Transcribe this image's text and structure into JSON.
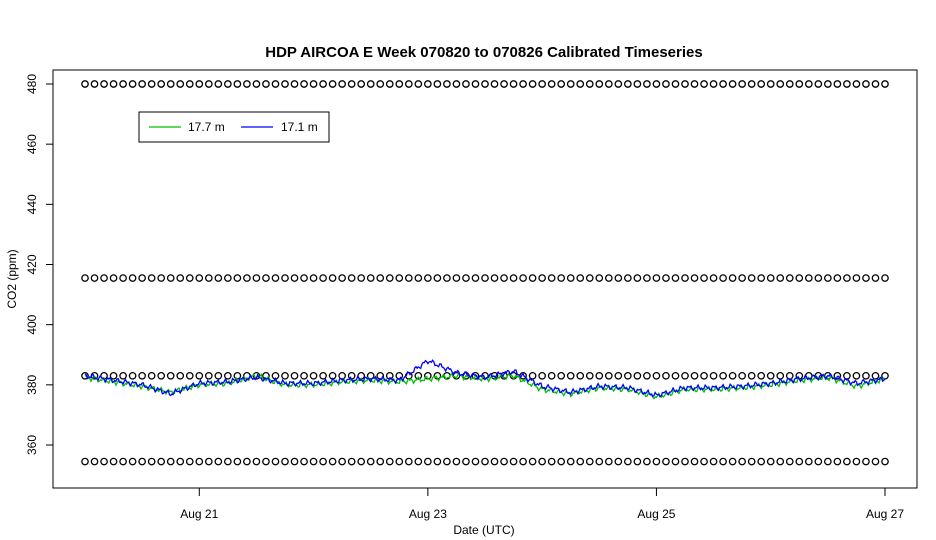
{
  "chart_data": {
    "type": "line",
    "title": "HDP AIRCOA E  Week 070820 to 070826  Calibrated Timeseries",
    "xlabel": "Date (UTC)",
    "ylabel": "CO2 (ppm)",
    "xlim": [
      "2007-08-20",
      "2007-08-27"
    ],
    "ylim": [
      345,
      484
    ],
    "x_ticks": [
      {
        "date": "2007-08-21",
        "label": "Aug 21"
      },
      {
        "date": "2007-08-23",
        "label": "Aug 23"
      },
      {
        "date": "2007-08-25",
        "label": "Aug 25"
      },
      {
        "date": "2007-08-27",
        "label": "Aug 27"
      }
    ],
    "y_ticks": [
      360,
      380,
      400,
      420,
      440,
      460,
      480
    ],
    "grid": false,
    "legend": {
      "position": "top-left",
      "entries": [
        {
          "name": "17.7 m",
          "color": "#00c000"
        },
        {
          "name": "17.1 m",
          "color": "#0000ff"
        }
      ]
    },
    "series": [
      {
        "name": "17.7 m",
        "color": "#00c000",
        "x": [
          "2007-08-20 00:00",
          "2007-08-20 06:00",
          "2007-08-20 12:00",
          "2007-08-20 18:00",
          "2007-08-21 00:00",
          "2007-08-21 06:00",
          "2007-08-21 12:00",
          "2007-08-21 18:00",
          "2007-08-22 00:00",
          "2007-08-22 06:00",
          "2007-08-22 12:00",
          "2007-08-22 18:00",
          "2007-08-23 00:00",
          "2007-08-23 06:00",
          "2007-08-23 12:00",
          "2007-08-23 18:00",
          "2007-08-24 00:00",
          "2007-08-24 06:00",
          "2007-08-24 12:00",
          "2007-08-24 18:00",
          "2007-08-25 00:00",
          "2007-08-25 06:00",
          "2007-08-25 12:00",
          "2007-08-25 18:00",
          "2007-08-26 00:00",
          "2007-08-26 06:00",
          "2007-08-26 12:00",
          "2007-08-26 18:00",
          "2007-08-27 00:00"
        ],
        "values": [
          382.5,
          381.0,
          379.5,
          377.5,
          380.0,
          380.5,
          383.0,
          380.0,
          380.0,
          381.0,
          381.5,
          381.0,
          382.0,
          383.0,
          382.0,
          383.0,
          378.5,
          377.0,
          379.0,
          378.5,
          376.0,
          378.5,
          378.5,
          379.0,
          380.0,
          381.5,
          382.5,
          379.5,
          382.0
        ]
      },
      {
        "name": "17.1 m",
        "color": "#0000ff",
        "x": [
          "2007-08-20 00:00",
          "2007-08-20 06:00",
          "2007-08-20 12:00",
          "2007-08-20 18:00",
          "2007-08-21 00:00",
          "2007-08-21 06:00",
          "2007-08-21 12:00",
          "2007-08-21 18:00",
          "2007-08-22 00:00",
          "2007-08-22 06:00",
          "2007-08-22 12:00",
          "2007-08-22 18:00",
          "2007-08-23 00:00",
          "2007-08-23 06:00",
          "2007-08-23 12:00",
          "2007-08-23 18:00",
          "2007-08-24 00:00",
          "2007-08-24 06:00",
          "2007-08-24 12:00",
          "2007-08-24 18:00",
          "2007-08-25 00:00",
          "2007-08-25 06:00",
          "2007-08-25 12:00",
          "2007-08-25 18:00",
          "2007-08-26 00:00",
          "2007-08-26 06:00",
          "2007-08-26 12:00",
          "2007-08-26 18:00",
          "2007-08-27 00:00"
        ],
        "values": [
          383.0,
          381.5,
          380.0,
          377.0,
          380.5,
          381.0,
          382.5,
          380.5,
          380.5,
          381.5,
          382.0,
          381.5,
          388.0,
          384.0,
          382.5,
          384.5,
          379.5,
          377.5,
          379.5,
          379.0,
          376.5,
          379.0,
          379.0,
          379.5,
          380.5,
          382.0,
          383.0,
          380.5,
          382.0
        ]
      },
      {
        "name": "",
        "type": "scatter",
        "marker": "open-circle",
        "color": "#000000",
        "rows": [
          {
            "y": 480,
            "every_hours": 2
          },
          {
            "y": 415.5,
            "every_hours": 2
          },
          {
            "y": 383,
            "every_hours": 2
          },
          {
            "y": 354.5,
            "every_hours": 2
          }
        ]
      }
    ]
  }
}
